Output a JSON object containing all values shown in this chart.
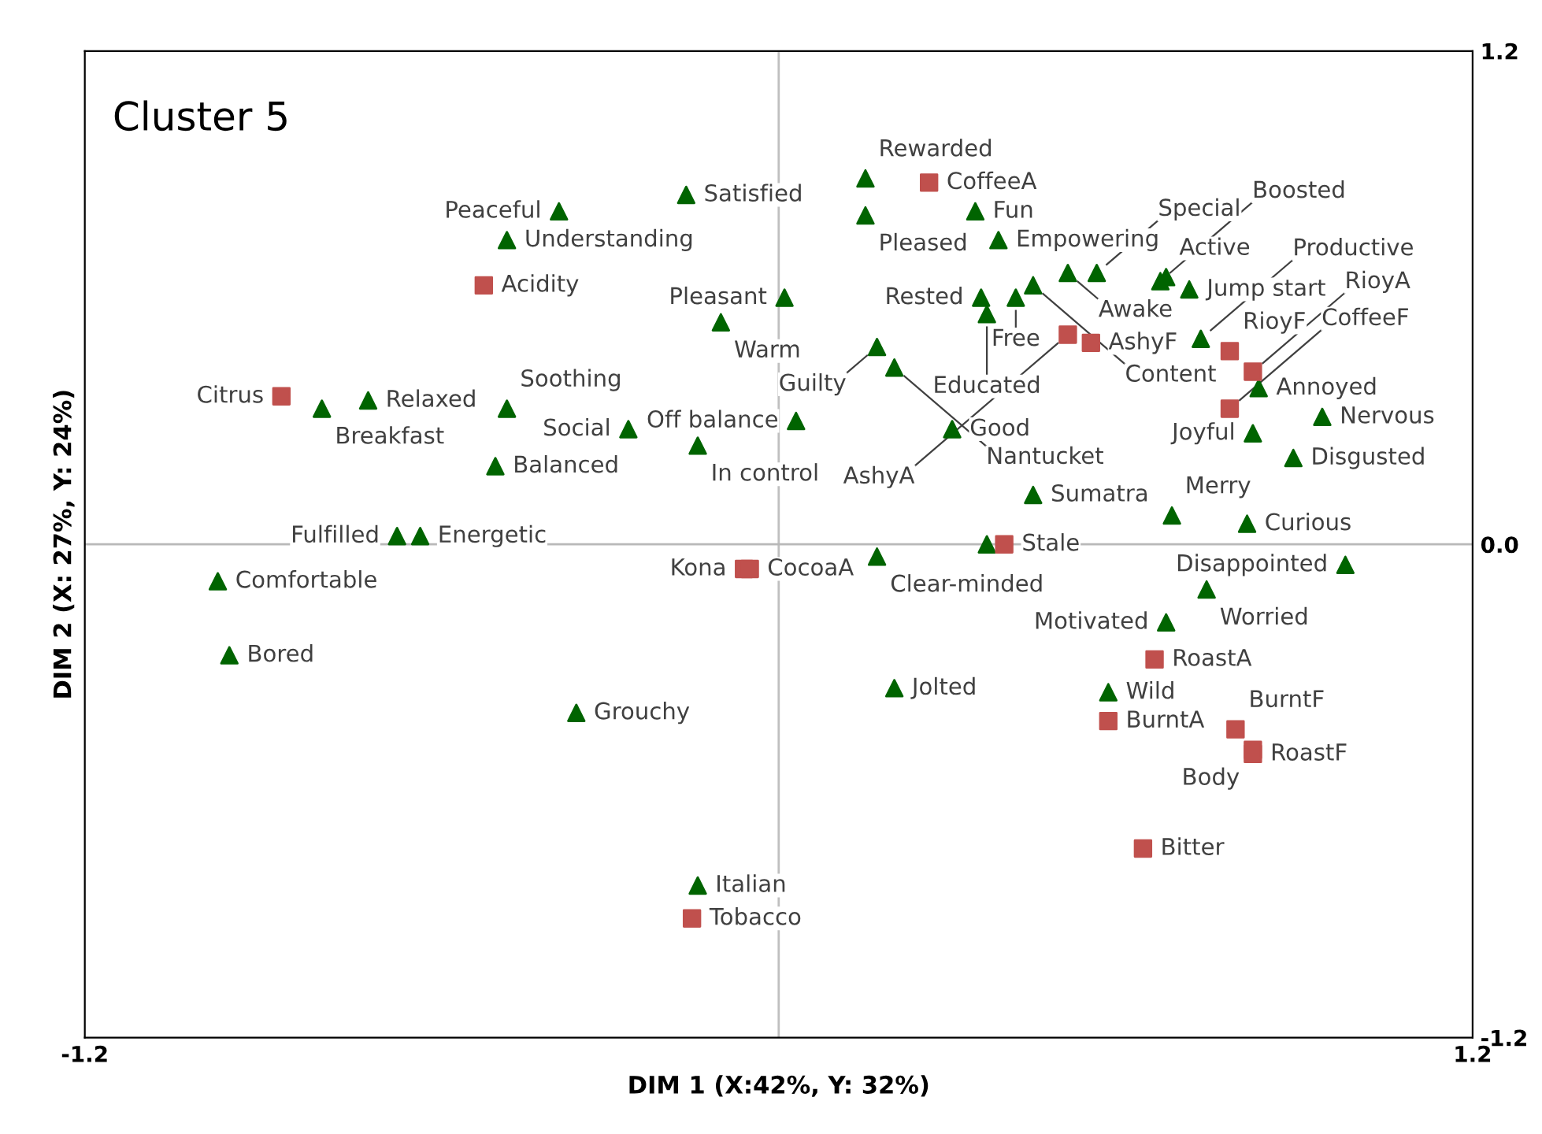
{
  "chart_data": {
    "type": "scatter",
    "xlabel": "DIM 1 (X:42%, Y: 32%)",
    "ylabel": "DIM 2 (X: 27%, Y: 24%)",
    "xlim": [
      -1.2,
      1.2
    ],
    "ylim": [
      -1.2,
      1.2
    ],
    "xticks": [
      -1.2,
      1.2
    ],
    "yticks": [
      -1.2,
      {
        "value": 0,
        "label": "0.0"
      },
      1.2
    ],
    "grid": false,
    "ref_lines": [
      {
        "axis": "x",
        "value": 0,
        "color": "#bfbfbf"
      },
      {
        "axis": "y",
        "value": 0,
        "color": "#b8b8b8"
      }
    ],
    "series": [
      {
        "color": "#006400",
        "marker": "triangle",
        "x": [
          -0.16,
          -0.38,
          -0.47,
          0.15,
          0.15,
          0.34,
          0.38,
          0.55,
          0.5,
          0.67,
          0.66,
          0.71,
          0.44,
          0.35,
          0.41,
          0.36,
          0.01,
          -0.1,
          0.17,
          0.2,
          0.73,
          0.83,
          0.94,
          0.82,
          0.89,
          -0.71,
          -0.79,
          -0.47,
          -0.26,
          -0.49,
          0.03,
          -0.14,
          0.3,
          0.44,
          0.68,
          0.81,
          -0.66,
          -0.62,
          0.36,
          0.17,
          0.98,
          0.74,
          -0.97,
          0.67,
          -0.95,
          0.57,
          0.2,
          -0.35,
          -0.14
        ],
        "values": [
          0.85,
          0.81,
          0.74,
          0.89,
          0.8,
          0.81,
          0.74,
          0.66,
          0.66,
          0.65,
          0.64,
          0.62,
          0.63,
          0.6,
          0.6,
          0.56,
          0.6,
          0.54,
          0.48,
          0.43,
          0.5,
          0.38,
          0.31,
          0.27,
          0.21,
          0.35,
          0.33,
          0.33,
          0.28,
          0.19,
          0.3,
          0.24,
          0.28,
          0.12,
          0.07,
          0.05,
          0.02,
          0.02,
          0.0,
          -0.03,
          -0.05,
          -0.11,
          -0.09,
          -0.19,
          -0.27,
          -0.36,
          -0.35,
          -0.41,
          -0.83
        ]
      },
      {
        "color": "#c0504d",
        "marker": "square",
        "x": [
          0.26,
          -0.51,
          0.5,
          0.54,
          0.78,
          0.82,
          0.78,
          -0.86,
          0.39,
          -0.06,
          -0.05,
          0.65,
          0.57,
          0.79,
          0.82,
          0.82,
          0.63,
          -0.15
        ],
        "values": [
          0.88,
          0.63,
          0.51,
          0.49,
          0.47,
          0.42,
          0.33,
          0.36,
          0.0,
          -0.06,
          -0.06,
          -0.28,
          -0.43,
          -0.45,
          -0.51,
          -0.5,
          -0.74,
          -0.91
        ]
      }
    ],
    "annotations": [
      "Cluster 5",
      {
        "text": "Satisfied",
        "x": -0.16,
        "y": 0.85
      },
      {
        "text": "Peaceful",
        "x": -0.38,
        "y": 0.81
      },
      {
        "text": "Understanding",
        "x": -0.47,
        "y": 0.74
      },
      {
        "text": "Rewarded",
        "x": 0.15,
        "y": 0.89
      },
      {
        "text": "Pleased",
        "x": 0.15,
        "y": 0.8
      },
      {
        "text": "Fun",
        "x": 0.34,
        "y": 0.81
      },
      {
        "text": "Empowering",
        "x": 0.38,
        "y": 0.74
      },
      {
        "text": "Special",
        "x": 0.55,
        "y": 0.66
      },
      {
        "text": "Awake",
        "x": 0.5,
        "y": 0.66
      },
      {
        "text": "Active",
        "x": 0.67,
        "y": 0.65
      },
      {
        "text": "Boosted",
        "x": 0.66,
        "y": 0.64
      },
      {
        "text": "Jump start",
        "x": 0.71,
        "y": 0.62
      },
      {
        "text": "Content",
        "x": 0.44,
        "y": 0.63
      },
      {
        "text": "Rested",
        "x": 0.35,
        "y": 0.6
      },
      {
        "text": "Free",
        "x": 0.41,
        "y": 0.6
      },
      {
        "text": "Educated",
        "x": 0.36,
        "y": 0.56
      },
      {
        "text": "Pleasant",
        "x": 0.01,
        "y": 0.6
      },
      {
        "text": "Warm",
        "x": -0.1,
        "y": 0.54
      },
      {
        "text": "Guilty",
        "x": 0.17,
        "y": 0.48
      },
      {
        "text": "Nantucket",
        "x": 0.2,
        "y": 0.43
      },
      {
        "text": "Productive",
        "x": 0.73,
        "y": 0.5
      },
      {
        "text": "Annoyed",
        "x": 0.83,
        "y": 0.38
      },
      {
        "text": "Nervous",
        "x": 0.94,
        "y": 0.31
      },
      {
        "text": "Joyful",
        "x": 0.82,
        "y": 0.27
      },
      {
        "text": "Disgusted",
        "x": 0.89,
        "y": 0.21
      },
      {
        "text": "Relaxed",
        "x": -0.71,
        "y": 0.35
      },
      {
        "text": "Breakfast",
        "x": -0.79,
        "y": 0.33
      },
      {
        "text": "Soothing",
        "x": -0.47,
        "y": 0.33
      },
      {
        "text": "Social",
        "x": -0.26,
        "y": 0.28
      },
      {
        "text": "Balanced",
        "x": -0.49,
        "y": 0.19
      },
      {
        "text": "Off balance",
        "x": 0.03,
        "y": 0.3
      },
      {
        "text": "In control",
        "x": -0.14,
        "y": 0.24
      },
      {
        "text": "Good",
        "x": 0.3,
        "y": 0.28
      },
      {
        "text": "Sumatra",
        "x": 0.44,
        "y": 0.12
      },
      {
        "text": "Merry",
        "x": 0.68,
        "y": 0.07
      },
      {
        "text": "Curious",
        "x": 0.81,
        "y": 0.05
      },
      {
        "text": "Fulfilled",
        "x": -0.66,
        "y": 0.02
      },
      {
        "text": "Energetic",
        "x": -0.62,
        "y": 0.02
      },
      {
        "text": "Clear-minded",
        "x": 0.17,
        "y": -0.03
      },
      {
        "text": "Disappointed",
        "x": 0.98,
        "y": -0.05
      },
      {
        "text": "Worried",
        "x": 0.74,
        "y": -0.11
      },
      {
        "text": "Comfortable",
        "x": -0.97,
        "y": -0.09
      },
      {
        "text": "Motivated",
        "x": 0.67,
        "y": -0.19
      },
      {
        "text": "Bored",
        "x": -0.95,
        "y": -0.27
      },
      {
        "text": "Wild",
        "x": 0.57,
        "y": -0.36
      },
      {
        "text": "Jolted",
        "x": 0.2,
        "y": -0.35
      },
      {
        "text": "Grouchy",
        "x": -0.35,
        "y": -0.41
      },
      {
        "text": "Italian",
        "x": -0.14,
        "y": -0.83
      },
      {
        "text": "CoffeeA",
        "x": 0.26,
        "y": 0.88
      },
      {
        "text": "Acidity",
        "x": -0.51,
        "y": 0.63
      },
      {
        "text": "AshyA",
        "x": 0.5,
        "y": 0.51
      },
      {
        "text": "AshyF",
        "x": 0.54,
        "y": 0.49
      },
      {
        "text": "RioyF",
        "x": 0.78,
        "y": 0.47
      },
      {
        "text": "RioyA",
        "x": 0.82,
        "y": 0.42
      },
      {
        "text": "CoffeeF",
        "x": 0.78,
        "y": 0.33
      },
      {
        "text": "Citrus",
        "x": -0.86,
        "y": 0.36
      },
      {
        "text": "Stale",
        "x": 0.39,
        "y": 0.0
      },
      {
        "text": "Kona",
        "x": -0.06,
        "y": -0.06
      },
      {
        "text": "CocoaA",
        "x": -0.05,
        "y": -0.06
      },
      {
        "text": "RoastA",
        "x": 0.65,
        "y": -0.28
      },
      {
        "text": "BurntA",
        "x": 0.57,
        "y": -0.43
      },
      {
        "text": "BurntF",
        "x": 0.79,
        "y": -0.45
      },
      {
        "text": "RoastF",
        "x": 0.82,
        "y": -0.51
      },
      {
        "text": "Body",
        "x": 0.82,
        "y": -0.5
      },
      {
        "text": "Bitter",
        "x": 0.63,
        "y": -0.74
      },
      {
        "text": "Tobacco",
        "x": -0.15,
        "y": -0.91
      }
    ]
  }
}
